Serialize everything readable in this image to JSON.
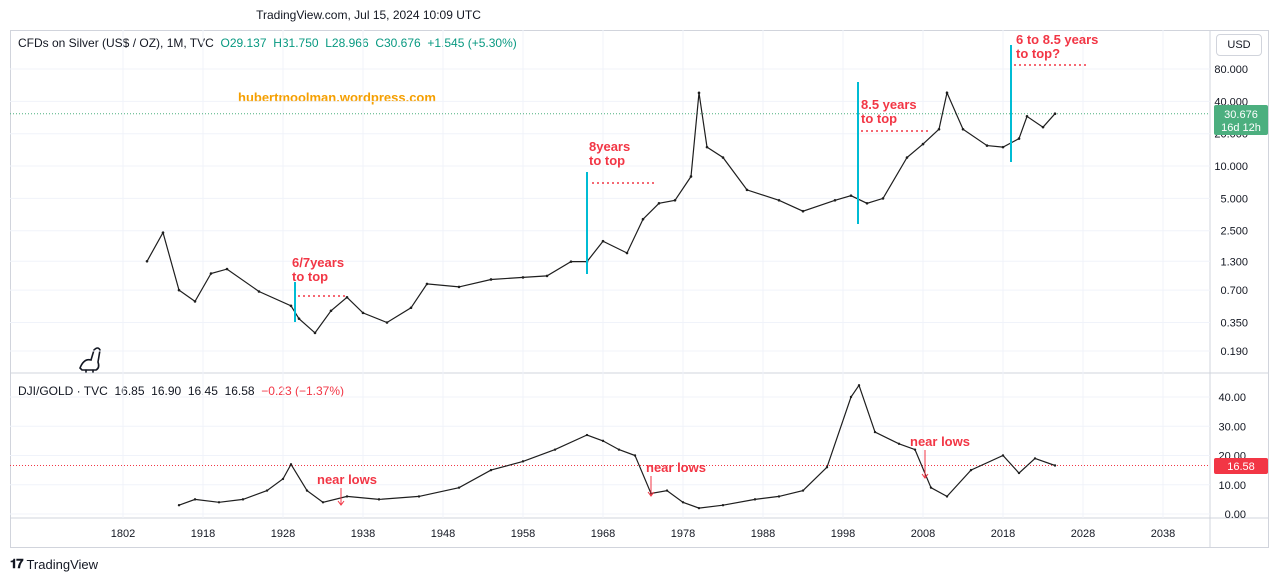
{
  "caption": "TradingView.com, Jul 15, 2024 10:09 UTC",
  "currency_button": "USD",
  "footer_brand": "TradingView",
  "watermark": "hubertmoolman.wordpress.com",
  "pane1": {
    "symbol": "CFDs on Silver (US$ / OZ), 1M, TVC",
    "open": "O29.137",
    "high": "H31.750",
    "low": "L28.966",
    "close": "C30.676",
    "change": "+1.545 (+5.30%)",
    "price_badge": "30.676",
    "countdown": "16d 12h",
    "yticks": [
      "80.000",
      "40.000",
      "20.000",
      "10.000",
      "5.000",
      "2.500",
      "1.300",
      "0.700",
      "0.350",
      "0.190"
    ],
    "annotations": [
      {
        "line1": "6/7years",
        "line2": "to top"
      },
      {
        "line1": "8years",
        "line2": "to top"
      },
      {
        "line1": "8.5 years",
        "line2": "to top"
      },
      {
        "line1": "6 to 8.5 years",
        "line2": "to top?"
      }
    ]
  },
  "pane2": {
    "symbol": "DJI/GOLD · TVC",
    "open": "16.85",
    "high": "16.90",
    "low": "16.45",
    "close": "16.58",
    "change": "−0.23 (−1.37%)",
    "price_badge": "16.58",
    "yticks": [
      "40.00",
      "30.00",
      "20.00",
      "10.00",
      "0.00"
    ],
    "annotations": [
      "near lows",
      "near lows",
      "near lows"
    ]
  },
  "xaxis": [
    "1802",
    "1918",
    "1928",
    "1938",
    "1948",
    "1958",
    "1968",
    "1978",
    "1988",
    "1998",
    "2008",
    "2018",
    "2028",
    "2038"
  ],
  "colors": {
    "accent": "#f23645",
    "cyan": "#00bcd4",
    "watermark": "#f59f00",
    "green": "#089981",
    "candle": "#1e1e1e"
  },
  "chart_data": [
    {
      "type": "line",
      "title": "CFDs on Silver (US$ / OZ), 1M, TVC",
      "scale": "log",
      "ylim": [
        0.17,
        110
      ],
      "x": [
        1911,
        1913,
        1915,
        1917,
        1919,
        1921,
        1925,
        1929,
        1930,
        1932,
        1934,
        1936,
        1938,
        1941,
        1944,
        1946,
        1950,
        1954,
        1958,
        1961,
        1964,
        1966,
        1968,
        1971,
        1973,
        1975,
        1977,
        1979,
        1980,
        1981,
        1983,
        1986,
        1990,
        1993,
        1997,
        1999,
        2001,
        2003,
        2006,
        2008,
        2010,
        2011,
        2013,
        2016,
        2018,
        2020,
        2021,
        2023,
        2024.5
      ],
      "y": [
        1.3,
        2.4,
        0.7,
        0.55,
        1.0,
        1.1,
        0.68,
        0.5,
        0.38,
        0.28,
        0.45,
        0.6,
        0.43,
        0.35,
        0.48,
        0.8,
        0.75,
        0.88,
        0.92,
        0.95,
        1.29,
        1.29,
        2.0,
        1.55,
        3.2,
        4.5,
        4.8,
        8.0,
        48.0,
        15.0,
        12.0,
        6.0,
        4.8,
        3.8,
        4.8,
        5.3,
        4.5,
        5.0,
        12.0,
        16.0,
        22.0,
        48.0,
        22.0,
        15.5,
        15.0,
        18.0,
        29.0,
        23.0,
        30.676
      ]
    },
    {
      "type": "line",
      "title": "DJI/GOLD · TVC",
      "ylim": [
        0,
        48
      ],
      "x": [
        1915,
        1917,
        1920,
        1923,
        1926,
        1928,
        1929,
        1931,
        1933,
        1936,
        1940,
        1945,
        1950,
        1954,
        1958,
        1962,
        1966,
        1968,
        1970,
        1972,
        1974,
        1976,
        1978,
        1980,
        1983,
        1987,
        1990,
        1993,
        1996,
        1999,
        2000,
        2002,
        2005,
        2007,
        2009,
        2011,
        2014,
        2018,
        2020,
        2022,
        2024.5
      ],
      "y": [
        3,
        5,
        4,
        5,
        8,
        12,
        17,
        8,
        4,
        6,
        5,
        6,
        9,
        15,
        18,
        22,
        27,
        25,
        22,
        20,
        7,
        8,
        4,
        2,
        3,
        5,
        6,
        8,
        16,
        40,
        44,
        28,
        24,
        22,
        9,
        6,
        15,
        20,
        14,
        19,
        16.58
      ]
    }
  ]
}
